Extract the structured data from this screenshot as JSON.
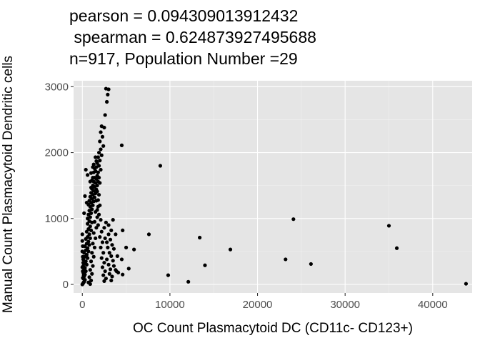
{
  "chart_data": {
    "type": "scatter",
    "title_lines": [
      "pearson = 0.094309013912432",
      " spearman = 0.624873927495688",
      "n=917, Population Number =29"
    ],
    "xlabel": "OC Count Plasmacytoid DC (CD11c- CD123+)",
    "ylabel": "Manual Count Plasmacytoid Dendritic cells",
    "xlim": [
      -1000,
      44500
    ],
    "ylim": [
      -130,
      3090
    ],
    "x_ticks": [
      0,
      10000,
      20000,
      30000,
      40000
    ],
    "x_tick_labels": [
      "0",
      "10000",
      "20000",
      "30000",
      "40000"
    ],
    "y_ticks": [
      0,
      1000,
      2000,
      3000
    ],
    "y_tick_labels": [
      "0",
      "1000",
      "2000",
      "3000"
    ],
    "grid": true,
    "background": "#e5e5e5",
    "point_color": "#000000",
    "points": [
      [
        4500,
        2110
      ],
      [
        8900,
        1800
      ],
      [
        4600,
        820
      ],
      [
        7600,
        760
      ],
      [
        5000,
        560
      ],
      [
        5900,
        530
      ],
      [
        4000,
        430
      ],
      [
        4500,
        380
      ],
      [
        5300,
        240
      ],
      [
        4100,
        180
      ],
      [
        4600,
        150
      ],
      [
        3900,
        200
      ],
      [
        9800,
        140
      ],
      [
        12100,
        40
      ],
      [
        13400,
        710
      ],
      [
        14000,
        290
      ],
      [
        16900,
        530
      ],
      [
        23200,
        380
      ],
      [
        24100,
        990
      ],
      [
        26100,
        310
      ],
      [
        35000,
        890
      ],
      [
        35900,
        550
      ],
      [
        43800,
        10
      ],
      [
        2700,
        2970
      ],
      [
        3000,
        2960
      ],
      [
        2900,
        2880
      ],
      [
        2800,
        2770
      ],
      [
        2600,
        2570
      ],
      [
        2200,
        2400
      ],
      [
        2500,
        2380
      ],
      [
        2100,
        2310
      ],
      [
        2300,
        2240
      ],
      [
        2000,
        2170
      ],
      [
        2400,
        2100
      ],
      [
        2100,
        2050
      ],
      [
        1900,
        2000
      ],
      [
        2200,
        1960
      ],
      [
        1800,
        1930
      ],
      [
        2000,
        1880
      ],
      [
        1700,
        1840
      ],
      [
        1900,
        1800
      ],
      [
        2100,
        1740
      ],
      [
        1600,
        1780
      ],
      [
        1800,
        1700
      ],
      [
        1500,
        1720
      ],
      [
        1700,
        1650
      ],
      [
        1600,
        1600
      ],
      [
        1400,
        1620
      ],
      [
        1800,
        1560
      ],
      [
        1500,
        1540
      ],
      [
        1300,
        1560
      ],
      [
        1700,
        1500
      ],
      [
        1400,
        1480
      ],
      [
        1200,
        1500
      ],
      [
        1600,
        1440
      ],
      [
        1300,
        1420
      ],
      [
        1100,
        1450
      ],
      [
        1500,
        1380
      ],
      [
        1200,
        1360
      ],
      [
        1000,
        1390
      ],
      [
        1400,
        1320
      ],
      [
        1100,
        1300
      ],
      [
        900,
        1330
      ],
      [
        1300,
        1260
      ],
      [
        1000,
        1240
      ],
      [
        800,
        1270
      ],
      [
        1200,
        1200
      ],
      [
        900,
        1180
      ],
      [
        700,
        1210
      ],
      [
        1100,
        1140
      ],
      [
        800,
        1120
      ],
      [
        1000,
        1080
      ],
      [
        700,
        1060
      ],
      [
        900,
        1020
      ],
      [
        600,
        1000
      ],
      [
        800,
        960
      ],
      [
        1100,
        940
      ],
      [
        600,
        920
      ],
      [
        900,
        880
      ],
      [
        700,
        840
      ],
      [
        1000,
        820
      ],
      [
        500,
        800
      ],
      [
        800,
        760
      ],
      [
        600,
        720
      ],
      [
        900,
        700
      ],
      [
        400,
        690
      ],
      [
        700,
        650
      ],
      [
        500,
        620
      ],
      [
        800,
        600
      ],
      [
        300,
        580
      ],
      [
        600,
        550
      ],
      [
        400,
        520
      ],
      [
        700,
        500
      ],
      [
        200,
        480
      ],
      [
        500,
        450
      ],
      [
        300,
        420
      ],
      [
        600,
        400
      ],
      [
        100,
        380
      ],
      [
        400,
        350
      ],
      [
        200,
        320
      ],
      [
        500,
        300
      ],
      [
        100,
        280
      ],
      [
        300,
        250
      ],
      [
        200,
        220
      ],
      [
        400,
        200
      ],
      [
        100,
        180
      ],
      [
        300,
        150
      ],
      [
        200,
        120
      ],
      [
        100,
        90
      ],
      [
        300,
        70
      ],
      [
        200,
        40
      ],
      [
        100,
        20
      ],
      [
        0,
        0
      ],
      [
        50,
        10
      ],
      [
        150,
        30
      ],
      [
        250,
        60
      ],
      [
        50,
        100
      ],
      [
        150,
        140
      ],
      [
        50,
        200
      ],
      [
        0,
        260
      ],
      [
        100,
        330
      ],
      [
        50,
        420
      ],
      [
        0,
        500
      ],
      [
        50,
        580
      ],
      [
        0,
        660
      ],
      [
        0,
        760
      ],
      [
        400,
        1740
      ],
      [
        600,
        1660
      ],
      [
        300,
        1340
      ],
      [
        500,
        1240
      ],
      [
        200,
        1080
      ],
      [
        1100,
        1580
      ],
      [
        1000,
        1470
      ],
      [
        900,
        1560
      ],
      [
        1000,
        1690
      ],
      [
        1200,
        1620
      ],
      [
        1300,
        1700
      ],
      [
        1400,
        1760
      ],
      [
        1200,
        1780
      ],
      [
        1600,
        1870
      ],
      [
        1500,
        1930
      ],
      [
        1300,
        1820
      ],
      [
        1900,
        1620
      ],
      [
        2000,
        1540
      ],
      [
        1700,
        1410
      ],
      [
        1900,
        1360
      ],
      [
        1600,
        1270
      ],
      [
        1800,
        1180
      ],
      [
        1500,
        1100
      ],
      [
        1700,
        1020
      ],
      [
        1400,
        950
      ],
      [
        1600,
        860
      ],
      [
        1300,
        780
      ],
      [
        1500,
        700
      ],
      [
        1200,
        620
      ],
      [
        1400,
        560
      ],
      [
        1100,
        480
      ],
      [
        1300,
        420
      ],
      [
        1000,
        350
      ],
      [
        1200,
        280
      ],
      [
        900,
        220
      ],
      [
        1100,
        160
      ],
      [
        800,
        110
      ],
      [
        1000,
        60
      ],
      [
        700,
        30
      ],
      [
        900,
        5
      ],
      [
        1800,
        1280
      ],
      [
        2000,
        1200
      ],
      [
        1700,
        1130
      ],
      [
        1900,
        1060
      ],
      [
        2100,
        980
      ],
      [
        1800,
        900
      ],
      [
        2200,
        800
      ],
      [
        2000,
        720
      ],
      [
        2300,
        640
      ],
      [
        2100,
        560
      ],
      [
        2400,
        480
      ],
      [
        2200,
        400
      ],
      [
        2500,
        330
      ],
      [
        2300,
        260
      ],
      [
        2600,
        200
      ],
      [
        2400,
        140
      ],
      [
        2700,
        90
      ],
      [
        2500,
        50
      ],
      [
        2800,
        380
      ],
      [
        3000,
        300
      ],
      [
        3200,
        230
      ],
      [
        3100,
        160
      ],
      [
        3400,
        120
      ],
      [
        3300,
        60
      ],
      [
        2900,
        560
      ],
      [
        3100,
        480
      ],
      [
        3300,
        430
      ],
      [
        3500,
        360
      ],
      [
        3600,
        280
      ],
      [
        3800,
        220
      ],
      [
        2600,
        700
      ],
      [
        2800,
        640
      ],
      [
        3000,
        760
      ],
      [
        3200,
        680
      ],
      [
        3400,
        600
      ],
      [
        3600,
        540
      ],
      [
        2500,
        860
      ],
      [
        2700,
        940
      ],
      [
        3000,
        900
      ],
      [
        3300,
        820
      ],
      [
        3800,
        760
      ],
      [
        3500,
        980
      ]
    ]
  }
}
